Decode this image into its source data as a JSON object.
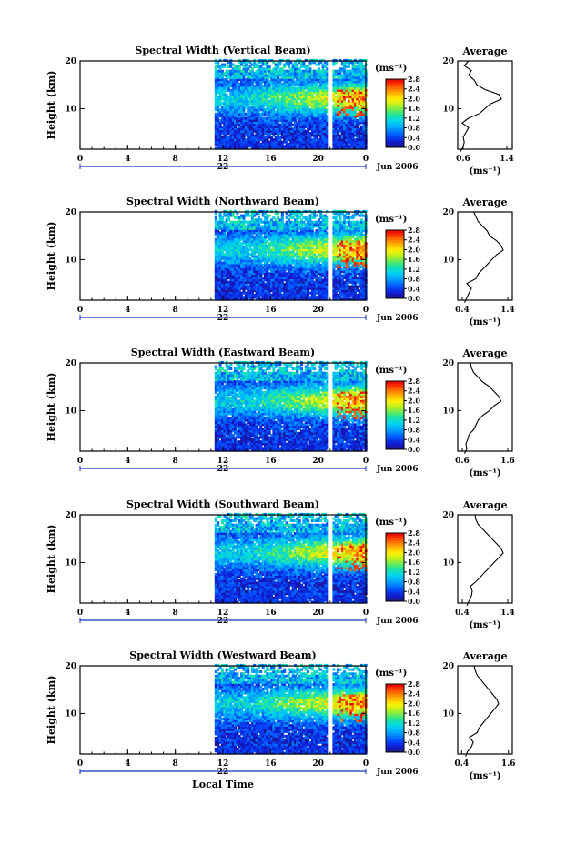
{
  "chart_data": [
    {
      "type": "heatmap",
      "title": "Spectral Width (Vertical Beam)",
      "ylabel": "Height (km)",
      "x_ticks": [
        "0",
        "4",
        "8",
        "12",
        "16",
        "20",
        "0"
      ],
      "y_ticks": [
        "10",
        "20"
      ],
      "date_day": "22",
      "date_month": "Jun 2006",
      "colorbar": {
        "unit": "(ms⁻¹)",
        "ticks": [
          "0.0",
          "0.4",
          "0.8",
          "1.2",
          "1.6",
          "2.0",
          "2.4",
          "2.8"
        ]
      },
      "average": {
        "title": "Average",
        "unit": "(ms⁻¹)",
        "x_ticks": [
          "0.6",
          "1.4"
        ],
        "y_ticks": [
          "10",
          "20"
        ],
        "heights": [
          1,
          2,
          3,
          4,
          5,
          6,
          7,
          8,
          9,
          10,
          11,
          12,
          13,
          14,
          15,
          16,
          17,
          18,
          19,
          20
        ],
        "values": [
          0.55,
          0.6,
          0.62,
          0.6,
          0.65,
          0.7,
          0.58,
          0.7,
          0.9,
          1.0,
          1.1,
          1.3,
          1.25,
          1.0,
          0.85,
          0.8,
          0.7,
          0.75,
          0.62,
          0.7
        ]
      }
    },
    {
      "type": "heatmap",
      "title": "Spectral Width (Northward Beam)",
      "ylabel": "Height (km)",
      "x_ticks": [
        "0",
        "4",
        "8",
        "12",
        "16",
        "20",
        "0"
      ],
      "y_ticks": [
        "10",
        "20"
      ],
      "date_day": "22",
      "date_month": "Jun 2006",
      "colorbar": {
        "unit": "(ms⁻¹)",
        "ticks": [
          "0.0",
          "0.4",
          "0.8",
          "1.2",
          "1.6",
          "2.0",
          "2.4",
          "2.8"
        ]
      },
      "average": {
        "title": "Average",
        "unit": "(ms⁻¹)",
        "x_ticks": [
          "0.4",
          "1.4"
        ],
        "y_ticks": [
          "10",
          "20"
        ],
        "heights": [
          1,
          2,
          3,
          4,
          5,
          6,
          7,
          8,
          9,
          10,
          11,
          12,
          13,
          14,
          15,
          16,
          17,
          18,
          19,
          20
        ],
        "values": [
          0.45,
          0.5,
          0.55,
          0.6,
          0.5,
          0.7,
          0.75,
          0.85,
          0.95,
          1.05,
          1.15,
          1.3,
          1.25,
          1.15,
          1.0,
          0.95,
          0.85,
          0.75,
          0.7,
          0.65
        ]
      }
    },
    {
      "type": "heatmap",
      "title": "Spectral Width (Eastward Beam)",
      "ylabel": "Height (km)",
      "x_ticks": [
        "0",
        "4",
        "8",
        "12",
        "16",
        "20",
        "0"
      ],
      "y_ticks": [
        "10",
        "20"
      ],
      "date_day": "22",
      "date_month": "Jun 2006",
      "colorbar": {
        "unit": "(ms⁻¹)",
        "ticks": [
          "0.0",
          "0.4",
          "0.8",
          "1.2",
          "1.6",
          "2.0",
          "2.4",
          "2.8"
        ]
      },
      "average": {
        "title": "Average",
        "unit": "(ms⁻¹)",
        "x_ticks": [
          "0.6",
          "1.6"
        ],
        "y_ticks": [
          "10",
          "20"
        ],
        "heights": [
          1,
          2,
          3,
          4,
          5,
          6,
          7,
          8,
          9,
          10,
          11,
          12,
          13,
          14,
          15,
          16,
          17,
          18,
          19,
          20
        ],
        "values": [
          0.65,
          0.7,
          0.68,
          0.72,
          0.75,
          0.85,
          0.9,
          0.95,
          1.05,
          1.2,
          1.3,
          1.45,
          1.4,
          1.3,
          1.2,
          1.05,
          0.95,
          0.85,
          0.8,
          0.78
        ]
      }
    },
    {
      "type": "heatmap",
      "title": "Spectral Width (Southward Beam)",
      "ylabel": "Height (km)",
      "x_ticks": [
        "0",
        "4",
        "8",
        "12",
        "16",
        "20",
        "0"
      ],
      "y_ticks": [
        "10",
        "20"
      ],
      "date_day": "22",
      "date_month": "Jun 2006",
      "colorbar": {
        "unit": "(ms⁻¹)",
        "ticks": [
          "0.0",
          "0.4",
          "0.8",
          "1.2",
          "1.6",
          "2.0",
          "2.4",
          "2.8"
        ]
      },
      "average": {
        "title": "Average",
        "unit": "(ms⁻¹)",
        "x_ticks": [
          "0.4",
          "1.4"
        ],
        "y_ticks": [
          "10",
          "20"
        ],
        "heights": [
          1,
          2,
          3,
          4,
          5,
          6,
          7,
          8,
          9,
          10,
          11,
          12,
          13,
          14,
          15,
          16,
          17,
          18,
          19,
          20
        ],
        "values": [
          0.5,
          0.55,
          0.6,
          0.62,
          0.58,
          0.7,
          0.8,
          0.9,
          1.0,
          1.1,
          1.2,
          1.3,
          1.25,
          1.15,
          1.05,
          0.95,
          0.85,
          0.75,
          0.7,
          0.68
        ]
      }
    },
    {
      "type": "heatmap",
      "title": "Spectral Width (Westward Beam)",
      "ylabel": "Height (km)",
      "x_ticks": [
        "0",
        "4",
        "8",
        "12",
        "16",
        "20",
        "0"
      ],
      "y_ticks": [
        "10",
        "20"
      ],
      "date_day": "22",
      "date_month": "Jun 2006",
      "xlabel": "Local Time",
      "colorbar": {
        "unit": "(ms⁻¹)",
        "ticks": [
          "0.0",
          "0.4",
          "0.8",
          "1.2",
          "1.6",
          "2.0",
          "2.4",
          "2.8"
        ]
      },
      "average": {
        "title": "Average",
        "unit": "(ms⁻¹)",
        "x_ticks": [
          "0.4",
          "1.6"
        ],
        "y_ticks": [
          "10",
          "20"
        ],
        "heights": [
          1,
          2,
          3,
          4,
          5,
          6,
          7,
          8,
          9,
          10,
          11,
          12,
          13,
          14,
          15,
          16,
          17,
          18,
          19,
          20
        ],
        "values": [
          0.5,
          0.55,
          0.65,
          0.7,
          0.6,
          0.8,
          0.85,
          0.95,
          1.05,
          1.15,
          1.25,
          1.35,
          1.3,
          1.2,
          1.1,
          1.0,
          0.9,
          0.8,
          0.75,
          0.72
        ]
      }
    }
  ]
}
